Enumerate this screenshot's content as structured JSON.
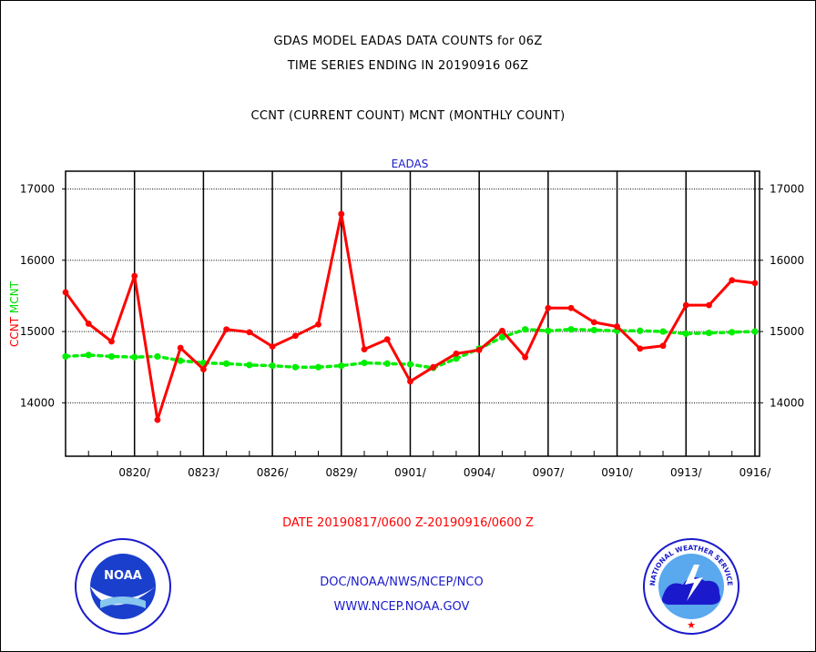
{
  "header": {
    "title_line1": "GDAS MODEL EADAS DATA COUNTS for 06Z",
    "title_line2": "TIME SERIES ENDING IN 20190916 06Z",
    "subtitle": "CCNT (CURRENT COUNT) MCNT (MONTHLY COUNT)"
  },
  "chart_data": {
    "type": "line",
    "title": "EADAS",
    "ylabel_parts": [
      "CCNT",
      "MCNT"
    ],
    "ylim": [
      13250,
      17250
    ],
    "yticks": [
      14000,
      15000,
      16000,
      17000
    ],
    "ytick_labels": [
      "14000",
      "15000",
      "16000",
      "17000"
    ],
    "xticks": [
      {
        "day": 3,
        "label": "0820/"
      },
      {
        "day": 6,
        "label": "0823/"
      },
      {
        "day": 9,
        "label": "0826/"
      },
      {
        "day": 12,
        "label": "0829/"
      },
      {
        "day": 15,
        "label": "0901/"
      },
      {
        "day": 18,
        "label": "0904/"
      },
      {
        "day": 21,
        "label": "0907/"
      },
      {
        "day": 24,
        "label": "0910/"
      },
      {
        "day": 27,
        "label": "0913/"
      },
      {
        "day": 30,
        "label": "0916/"
      }
    ],
    "grid": true,
    "x_days": [
      0,
      1,
      2,
      3,
      4,
      5,
      6,
      7,
      8,
      9,
      10,
      11,
      12,
      13,
      14,
      15,
      16,
      17,
      18,
      19,
      20,
      21,
      22,
      23,
      24,
      25,
      26,
      27,
      28,
      29,
      30
    ],
    "series": [
      {
        "name": "CCNT",
        "color": "#ff0000",
        "values": [
          15550,
          15110,
          14860,
          15780,
          13760,
          14770,
          14470,
          15030,
          14990,
          14790,
          14940,
          15100,
          16650,
          14750,
          14890,
          14300,
          14500,
          14690,
          14740,
          15010,
          14640,
          15330,
          15330,
          15130,
          15070,
          14760,
          14800,
          15370,
          15370,
          15720,
          15680
        ]
      },
      {
        "name": "MCNT",
        "color": "#00ee00",
        "values": [
          14650,
          14670,
          14650,
          14640,
          14650,
          14590,
          14560,
          14550,
          14530,
          14520,
          14500,
          14500,
          14520,
          14560,
          14550,
          14540,
          14490,
          14620,
          14760,
          14920,
          15030,
          15010,
          15030,
          15020,
          15010,
          15010,
          15000,
          14970,
          14980,
          14990,
          15000
        ]
      }
    ],
    "date_range": "DATE 20190817/0600 Z-20190916/0600 Z"
  },
  "footer": {
    "agency_line": "DOC/NOAA/NWS/NCEP/NCO",
    "url": "WWW.NCEP.NOAA.GOV",
    "noaa_logo_text": "NOAA",
    "nws_logo_text": "NATIONAL WEATHER SERVICE"
  }
}
